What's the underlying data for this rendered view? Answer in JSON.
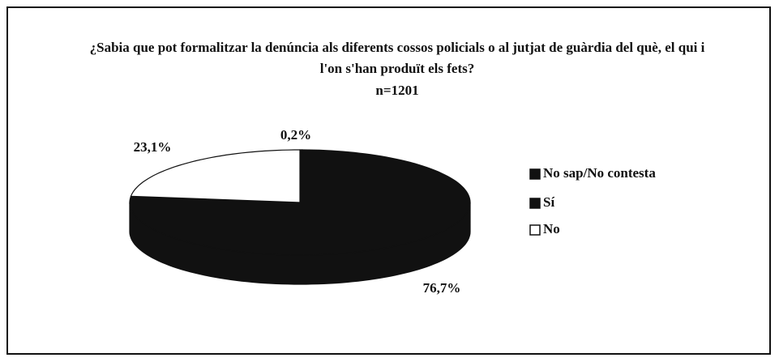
{
  "chart_data": {
    "type": "pie",
    "title": "¿Sabia que pot formalitzar la denúncia als diferents cossos policials o al jutjat de guàrdia del què, el qui i l'on s'han produït els fets?",
    "subtitle": "n=1201",
    "categories": [
      "No sap/No contesta",
      "Sí",
      "No"
    ],
    "values": [
      0.2,
      76.7,
      23.1
    ],
    "value_labels": [
      "0,2%",
      "76,7%",
      "23,1%"
    ],
    "colors": [
      "#111111",
      "#111111",
      "#ffffff"
    ],
    "legend": "right"
  }
}
